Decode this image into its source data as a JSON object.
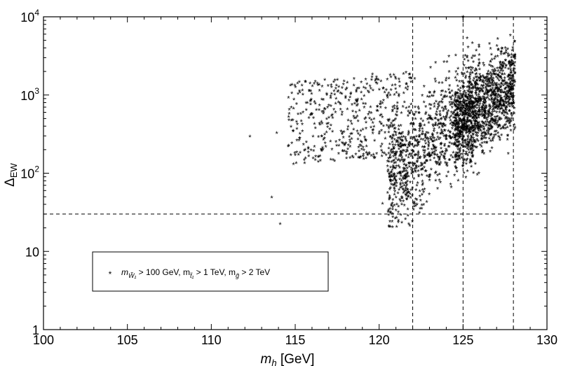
{
  "chart_data": {
    "type": "scatter",
    "title": "",
    "xlabel": {
      "main": "m",
      "sub": "h",
      "unit": " [GeV]"
    },
    "ylabel": {
      "main": "Δ",
      "sub": "EW"
    },
    "xlim": [
      100,
      130
    ],
    "ylim": [
      1,
      10000
    ],
    "yscale": "log",
    "grid": false,
    "x_ticks": [
      100,
      105,
      110,
      115,
      120,
      125,
      130
    ],
    "x_tick_labels": [
      "100",
      "105",
      "110",
      "115",
      "120",
      "125",
      "130"
    ],
    "y_ticks": [
      {
        "value": 1,
        "base": "1",
        "exp": ""
      },
      {
        "value": 10,
        "base": "10",
        "exp": ""
      },
      {
        "value": 100,
        "base": "10",
        "exp": "2"
      },
      {
        "value": 1000,
        "base": "10",
        "exp": "3"
      },
      {
        "value": 10000,
        "base": "10",
        "exp": "4"
      }
    ],
    "reference_lines": {
      "vertical_x": [
        122,
        125,
        128
      ],
      "horizontal_y": [
        30
      ]
    },
    "marker": {
      "symbol": "*",
      "color": "#22b822"
    },
    "legend": {
      "placement": "lower-left",
      "parts": [
        {
          "text": "m",
          "sub": "W̃₁"
        },
        {
          "text": " > 100 GeV, m",
          "sub": "t̃₁"
        },
        {
          "text": " > 1 TeV, m",
          "sub": "g̃"
        },
        {
          "text": " > 2 TeV",
          "sub": ""
        }
      ]
    },
    "series": [
      {
        "marker": "*",
        "points": [
          [
            112.3,
            290
          ],
          [
            113.6,
            48
          ],
          [
            113.9,
            320
          ],
          [
            114.1,
            22
          ],
          [
            115.4,
            1300
          ],
          [
            116.2,
            1450
          ],
          [
            116.6,
            600
          ],
          [
            117.1,
            250
          ],
          [
            117.6,
            1250
          ],
          [
            118.0,
            900
          ],
          [
            118.4,
            160
          ],
          [
            118.8,
            1200
          ],
          [
            119.2,
            500
          ],
          [
            119.6,
            1800
          ],
          [
            119.9,
            700
          ],
          [
            120.2,
            40
          ],
          [
            120.5,
            120
          ],
          [
            120.8,
            20
          ],
          [
            121.0,
            300
          ],
          [
            121.3,
            90
          ],
          [
            121.6,
            1900
          ],
          [
            121.9,
            60
          ],
          [
            122.3,
            150
          ],
          [
            122.7,
            400
          ],
          [
            123.2,
            250
          ],
          [
            123.7,
            800
          ],
          [
            124.2,
            500
          ],
          [
            124.7,
            900
          ],
          [
            125.0,
            9800
          ],
          [
            125.3,
            4000
          ],
          [
            125.8,
            1500
          ],
          [
            126.2,
            2500
          ],
          [
            126.8,
            1800
          ],
          [
            127.4,
            1300
          ],
          [
            127.9,
            1250
          ]
        ]
      }
    ]
  }
}
